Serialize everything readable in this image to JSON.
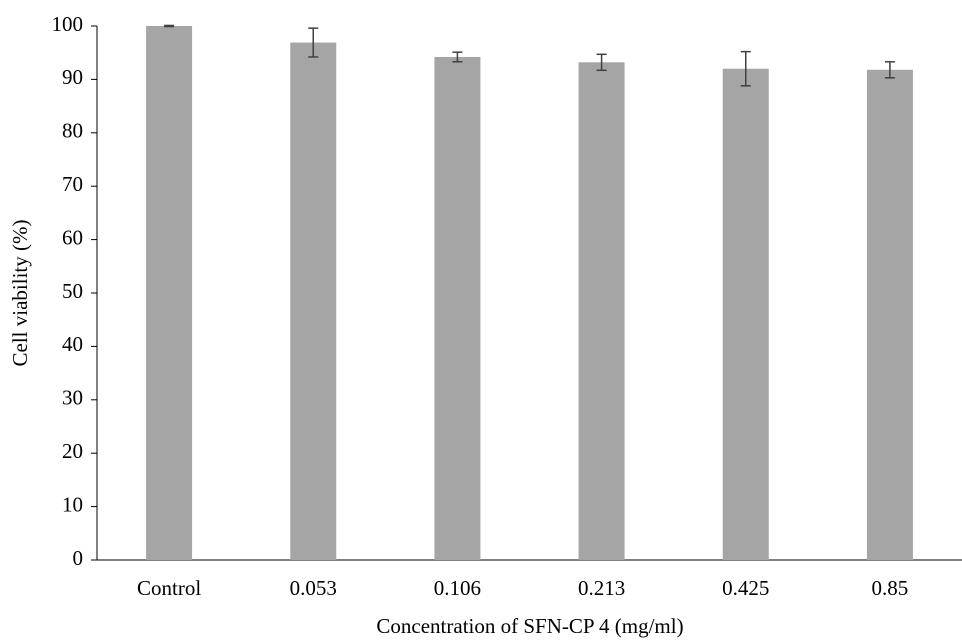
{
  "chart_data": {
    "type": "bar",
    "xlabel": "Concentration of SFN-CP 4 (mg/ml)",
    "ylabel": "Cell  viability (%)",
    "categories": [
      "Control",
      "0.053",
      "0.106",
      "0.213",
      "0.425",
      "0.85"
    ],
    "values": [
      100,
      96.9,
      94.2,
      93.2,
      92.0,
      91.8
    ],
    "errors": [
      0.1,
      2.7,
      0.9,
      1.5,
      3.2,
      1.5
    ],
    "color": "#a5a5a5",
    "error_color": "#404040",
    "ylim": [
      0,
      100
    ],
    "yticks": [
      0,
      10,
      20,
      30,
      40,
      50,
      60,
      70,
      80,
      90,
      100
    ],
    "grid": false
  }
}
